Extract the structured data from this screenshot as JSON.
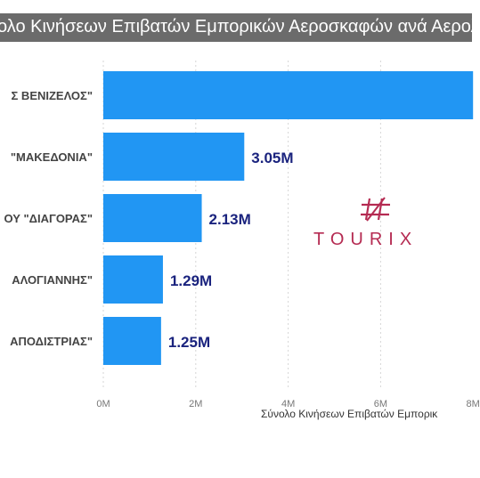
{
  "title": "ολο Κινήσεων Επιβατών Εμπορικών Αεροσκαφών ανά Αερολ",
  "colors": {
    "bar": "#2196f3",
    "data_label": "#1a237e",
    "category_label": "#444444",
    "grid": "#d6d6d6",
    "logo": "#b52b52"
  },
  "logo": {
    "text": "TOURIX",
    "icon": "hash-logo-icon"
  },
  "chart_data": {
    "type": "bar",
    "orientation": "horizontal",
    "title": "ολο Κινήσεων Επιβατών Εμπορικών Αεροσκαφών ανά Αερολ",
    "xlabel": "Σύνολο Κινήσεων Επιβατών Εμπορικ",
    "categories": [
      "Σ ΒΕΝΙΖΕΛΟΣ\"",
      "\"ΜΑΚΕΔΟΝΙΑ\"",
      "ΟΥ \"ΔΙΑΓΟΡΑΣ\"",
      "ΑΛΟΓΙΑΝΝΗΣ\"",
      "ΑΠΟΔΙΣΤΡΙΑΣ\""
    ],
    "values": [
      8000000,
      3050000,
      2130000,
      1290000,
      1250000
    ],
    "data_labels": [
      "",
      "3.05M",
      "2.13M",
      "1.29M",
      "1.25M"
    ],
    "xlim": [
      0,
      8000000
    ],
    "xticks": [
      "0M",
      "2M",
      "4M",
      "6M",
      "8M"
    ],
    "xtick_values": [
      0,
      2000000,
      4000000,
      6000000,
      8000000
    ],
    "grid": true
  }
}
